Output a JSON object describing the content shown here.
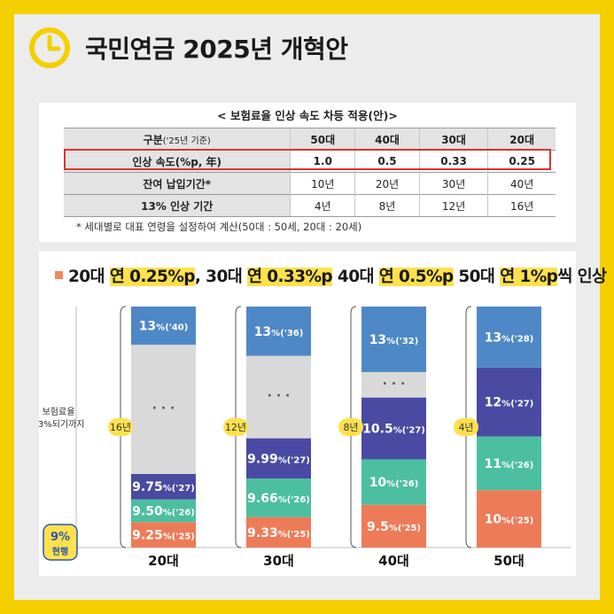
{
  "title": "국민연금 2025년 개혁안",
  "colors": {
    "frame": "#f4cf00",
    "c25": "#ee7b58",
    "c26": "#4cbfa0",
    "c27": "#4a4aa3",
    "top": "#4f88c6",
    "gap": "#d9d9d9",
    "yellow": "#ffe14d",
    "red": "#d7352f"
  },
  "table": {
    "caption": "< 보험료율 인상 속도 차등 적용(안)>",
    "header": {
      "label": "구분",
      "sub": "('25년 기준)",
      "cols": [
        "50대",
        "40대",
        "30대",
        "20대"
      ]
    },
    "rows": [
      {
        "label": "인상 속도(%p, 年)",
        "values": [
          "1.0",
          "0.5",
          "0.33",
          "0.25"
        ]
      },
      {
        "label": "잔여 납입기간*",
        "values": [
          "10년",
          "20년",
          "30년",
          "40년"
        ]
      },
      {
        "label": "13% 인상 기간",
        "values": [
          "4년",
          "8년",
          "12년",
          "16년"
        ]
      }
    ],
    "footnote": "* 세대별로 대표 연령을 설정하여 계산(50대 : 50세,   20대 : 20세)"
  },
  "headline": {
    "parts": [
      {
        "t": "20대 ",
        "hl": false
      },
      {
        "t": "연 0.25%p",
        "hl": true
      },
      {
        "t": ", 30대 ",
        "hl": false
      },
      {
        "t": "연 0.33%p",
        "hl": true
      },
      {
        "t": " 40대 ",
        "hl": false
      },
      {
        "t": "연 0.5%p",
        "hl": true
      },
      {
        "t": " 50대 ",
        "hl": false
      },
      {
        "t": "연 1%p",
        "hl": true
      },
      {
        "t": "씩 인상",
        "hl": false
      }
    ]
  },
  "side_label": [
    "보험료율",
    "13%되기까지"
  ],
  "current_badge": {
    "value": "9%",
    "label": "현행"
  },
  "chart_data": {
    "type": "bar",
    "title": "20대 연 0.25%p, 30대 연 0.33%p 40대 연 0.5%p 50대 연 1%p씩 인상",
    "categories": [
      "20대",
      "30대",
      "40대",
      "50대"
    ],
    "years_to_13": [
      "16년",
      "12년",
      "8년",
      "4년"
    ],
    "baseline": {
      "value": 9,
      "label": "현행"
    },
    "target": 13,
    "columns": [
      {
        "category": "20대",
        "years": "16년",
        "segments": [
          {
            "rate": "9.25",
            "unit": "%",
            "year": "('25)",
            "color": "c25"
          },
          {
            "rate": "9.50",
            "unit": "%",
            "year": "('26)",
            "color": "c26"
          },
          {
            "rate": "9.75",
            "unit": "%",
            "year": "('27)",
            "color": "c27"
          },
          {
            "rate": "ellipsis",
            "color": "gap"
          },
          {
            "rate": "13",
            "unit": "%",
            "year": "('40)",
            "color": "top"
          }
        ]
      },
      {
        "category": "30대",
        "years": "12년",
        "segments": [
          {
            "rate": "9.33",
            "unit": "%",
            "year": "('25)",
            "color": "c25"
          },
          {
            "rate": "9.66",
            "unit": "%",
            "year": "('26)",
            "color": "c26"
          },
          {
            "rate": "9.99",
            "unit": "%",
            "year": "('27)",
            "color": "c27"
          },
          {
            "rate": "ellipsis",
            "color": "gap"
          },
          {
            "rate": "13",
            "unit": "%",
            "year": "('36)",
            "color": "top"
          }
        ]
      },
      {
        "category": "40대",
        "years": "8년",
        "segments": [
          {
            "rate": "9.5",
            "unit": "%",
            "year": "('25)",
            "color": "c25"
          },
          {
            "rate": "10",
            "unit": "%",
            "year": "('26)",
            "color": "c26"
          },
          {
            "rate": "10.5",
            "unit": "%",
            "year": "('27)",
            "color": "c27"
          },
          {
            "rate": "ellipsis",
            "color": "gap"
          },
          {
            "rate": "13",
            "unit": "%",
            "year": "('32)",
            "color": "top"
          }
        ]
      },
      {
        "category": "50대",
        "years": "4년",
        "segments": [
          {
            "rate": "10",
            "unit": "%",
            "year": "('25)",
            "color": "c25"
          },
          {
            "rate": "11",
            "unit": "%",
            "year": "('26)",
            "color": "c26"
          },
          {
            "rate": "12",
            "unit": "%",
            "year": "('27)",
            "color": "c27"
          },
          {
            "rate": "13",
            "unit": "%",
            "year": "('28)",
            "color": "top"
          }
        ]
      }
    ],
    "ylim": [
      9,
      13
    ]
  }
}
